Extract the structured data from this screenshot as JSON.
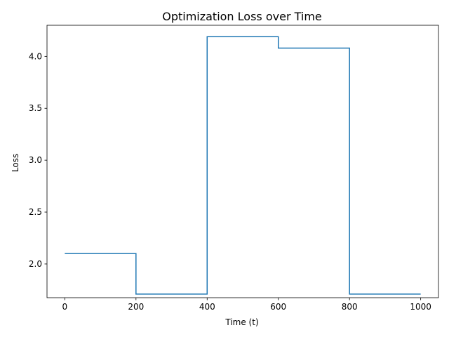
{
  "chart_data": {
    "type": "line",
    "title": "Optimization Loss over Time",
    "xlabel": "Time (t)",
    "ylabel": "Loss",
    "xlim": [
      -50,
      1050
    ],
    "ylim": [
      1.675,
      4.3
    ],
    "xticks": [
      0,
      200,
      400,
      600,
      800,
      1000
    ],
    "xtick_labels": [
      "0",
      "200",
      "400",
      "600",
      "800",
      "1000"
    ],
    "yticks": [
      2.0,
      2.5,
      3.0,
      3.5,
      4.0
    ],
    "ytick_labels": [
      "2.0",
      "2.5",
      "3.0",
      "3.5",
      "4.0"
    ],
    "grid": false,
    "series": [
      {
        "color": "#1f77b4",
        "x": [
          0,
          200,
          200,
          400,
          400,
          600,
          600,
          800,
          800,
          1000
        ],
        "y": [
          2.1,
          2.1,
          1.71,
          1.71,
          4.19,
          4.19,
          4.08,
          4.08,
          1.71,
          1.71
        ]
      }
    ]
  }
}
